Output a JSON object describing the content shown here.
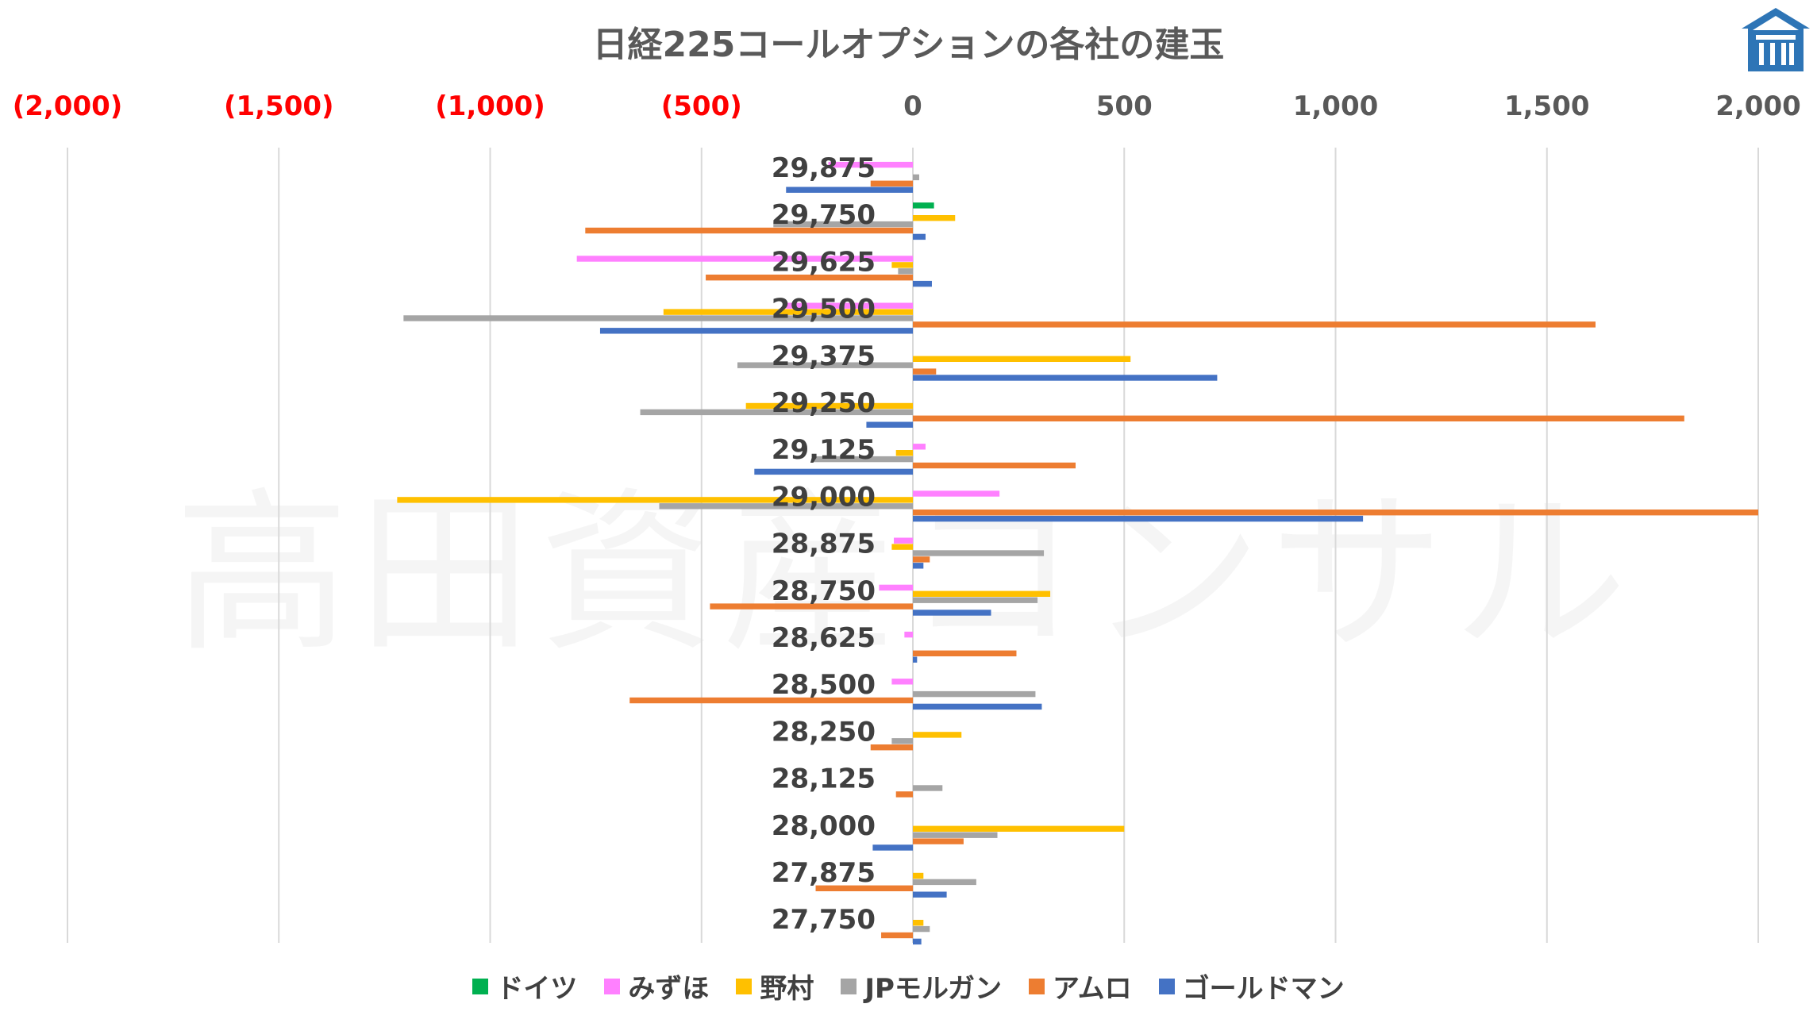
{
  "chart_data": {
    "type": "bar",
    "orientation": "horizontal",
    "title": "日経225コールオプションの各社の建玉",
    "watermark": "高田資産コンサル",
    "xlim": [
      -2000,
      2000
    ],
    "x_ticks": [
      {
        "value": -2000,
        "label": "(2,000)",
        "color": "#ff0000"
      },
      {
        "value": -1500,
        "label": "(1,500)",
        "color": "#ff0000"
      },
      {
        "value": -1000,
        "label": "(1,000)",
        "color": "#ff0000"
      },
      {
        "value": -500,
        "label": "(500)",
        "color": "#ff0000"
      },
      {
        "value": 0,
        "label": "0",
        "color": "#595959"
      },
      {
        "value": 500,
        "label": "500",
        "color": "#595959"
      },
      {
        "value": 1000,
        "label": "1,000",
        "color": "#595959"
      },
      {
        "value": 1500,
        "label": "1,500",
        "color": "#595959"
      },
      {
        "value": 2000,
        "label": "2,000",
        "color": "#595959"
      }
    ],
    "gridlines": true,
    "legend_position": "bottom",
    "categories": [
      "29,875",
      "29,750",
      "29,625",
      "29,500",
      "29,375",
      "29,250",
      "29,125",
      "29,000",
      "28,875",
      "28,750",
      "28,625",
      "28,500",
      "28,250",
      "28,125",
      "28,000",
      "27,875",
      "27,750"
    ],
    "series": [
      {
        "name": "ドイツ",
        "color": "#00b050",
        "values": [
          0,
          50,
          0,
          0,
          0,
          0,
          0,
          0,
          0,
          0,
          0,
          0,
          0,
          0,
          0,
          0,
          0
        ]
      },
      {
        "name": "みずほ",
        "color": "#ff80ff",
        "values": [
          -200,
          0,
          -795,
          -300,
          0,
          0,
          30,
          205,
          -45,
          -80,
          -20,
          -50,
          0,
          0,
          0,
          0,
          0
        ]
      },
      {
        "name": "野村",
        "color": "#ffc000",
        "values": [
          0,
          100,
          -50,
          -590,
          515,
          -395,
          -40,
          -1220,
          -50,
          325,
          0,
          0,
          115,
          0,
          500,
          25,
          25
        ]
      },
      {
        "name": "JPモルガン",
        "color": "#a5a5a5",
        "values": [
          15,
          -330,
          -35,
          -1205,
          -415,
          -645,
          -235,
          -600,
          310,
          295,
          0,
          290,
          -50,
          70,
          200,
          150,
          40
        ]
      },
      {
        "name": "アムロ",
        "color": "#ed7d31",
        "values": [
          -100,
          -775,
          -490,
          1615,
          55,
          1825,
          385,
          2000,
          40,
          -480,
          245,
          -670,
          -100,
          -40,
          120,
          -230,
          -75
        ]
      },
      {
        "name": "ゴールドマン",
        "color": "#4472c4",
        "values": [
          -300,
          30,
          45,
          -740,
          720,
          -110,
          -375,
          1065,
          25,
          185,
          10,
          305,
          0,
          0,
          -95,
          80,
          20
        ]
      }
    ]
  },
  "legend": [
    {
      "label": "ドイツ",
      "color": "#00b050"
    },
    {
      "label": "みずほ",
      "color": "#ff80ff"
    },
    {
      "label": "野村",
      "color": "#ffc000"
    },
    {
      "label": "JPモルガン",
      "color": "#a5a5a5"
    },
    {
      "label": "アムロ",
      "color": "#ed7d31"
    },
    {
      "label": "ゴールドマン",
      "color": "#4472c4"
    }
  ],
  "logo_icon": "house-logo-icon"
}
